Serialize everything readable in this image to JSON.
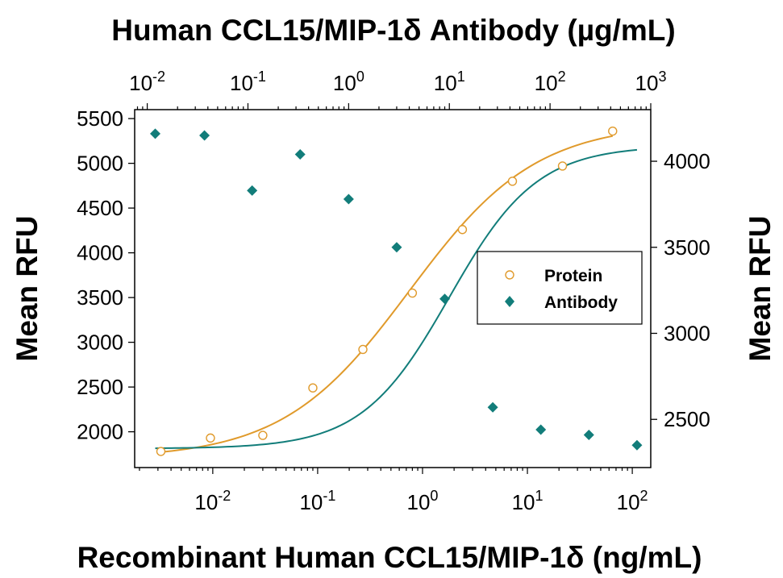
{
  "chart_data": {
    "type": "scatter",
    "title_top": "Human CCL15/MIP-1δ Antibody (µg/mL)",
    "xlabel_bottom": "Recombinant Human CCL15/MIP-1δ (ng/mL)",
    "ylabel_left": "Mean RFU",
    "ylabel_right": "Mean RFU",
    "x_bottom": {
      "scale": "log",
      "range": [
        0.0018,
        150
      ],
      "ticks": [
        0.01,
        0.1,
        1,
        10,
        100
      ],
      "tick_labels": [
        {
          "base": "10",
          "exp": "-2"
        },
        {
          "base": "10",
          "exp": "-1"
        },
        {
          "base": "10",
          "exp": "0"
        },
        {
          "base": "10",
          "exp": "1"
        },
        {
          "base": "10",
          "exp": "2"
        }
      ]
    },
    "x_top": {
      "scale": "log",
      "range": [
        0.0075,
        1000
      ],
      "ticks": [
        0.01,
        0.1,
        1,
        10,
        100,
        1000
      ],
      "tick_labels": [
        {
          "base": "10",
          "exp": "-2"
        },
        {
          "base": "10",
          "exp": "-1"
        },
        {
          "base": "10",
          "exp": "0"
        },
        {
          "base": "10",
          "exp": "1"
        },
        {
          "base": "10",
          "exp": "2"
        },
        {
          "base": "10",
          "exp": "3"
        }
      ]
    },
    "y_left": {
      "range": [
        1600,
        5600
      ],
      "ticks": [
        2000,
        2500,
        3000,
        3500,
        4000,
        4500,
        5000,
        5500
      ],
      "tick_labels": [
        "2000",
        "2500",
        "3000",
        "3500",
        "4000",
        "4500",
        "5000",
        "5500"
      ]
    },
    "y_right": {
      "range": [
        2220,
        4300
      ],
      "ticks": [
        2500,
        3000,
        3500,
        4000
      ],
      "tick_labels": [
        "2500",
        "3000",
        "3500",
        "4000"
      ]
    },
    "legend": {
      "position": "right",
      "entries": [
        "Protein",
        "Antibody"
      ]
    },
    "grid": false,
    "series": [
      {
        "name": "Protein",
        "axis": "bottom-left",
        "marker": "open-circle",
        "color": "#E09A2B",
        "x": [
          0.0032,
          0.0095,
          0.03,
          0.09,
          0.27,
          0.8,
          2.4,
          7.2,
          21.6,
          65
        ],
        "y": [
          1780,
          1930,
          1960,
          2490,
          2920,
          3550,
          4260,
          4800,
          4970,
          5360
        ]
      },
      {
        "name": "Antibody",
        "axis": "top-right",
        "marker": "filled-diamond",
        "color": "#127D7A",
        "x": [
          0.012,
          0.037,
          0.11,
          0.33,
          1,
          3,
          9,
          27,
          81,
          243,
          730
        ],
        "y": [
          4160,
          4150,
          3830,
          4040,
          3780,
          3500,
          3200,
          2570,
          2440,
          2410,
          2350
        ]
      }
    ],
    "fit_curves": [
      {
        "series": "Protein",
        "bottom": 1700,
        "top": 5450,
        "ec50": 0.75,
        "hill": 0.72
      },
      {
        "series": "Antibody",
        "bottom": 2330,
        "top": 4090,
        "ec50": 10,
        "hill": 1.0
      }
    ]
  }
}
